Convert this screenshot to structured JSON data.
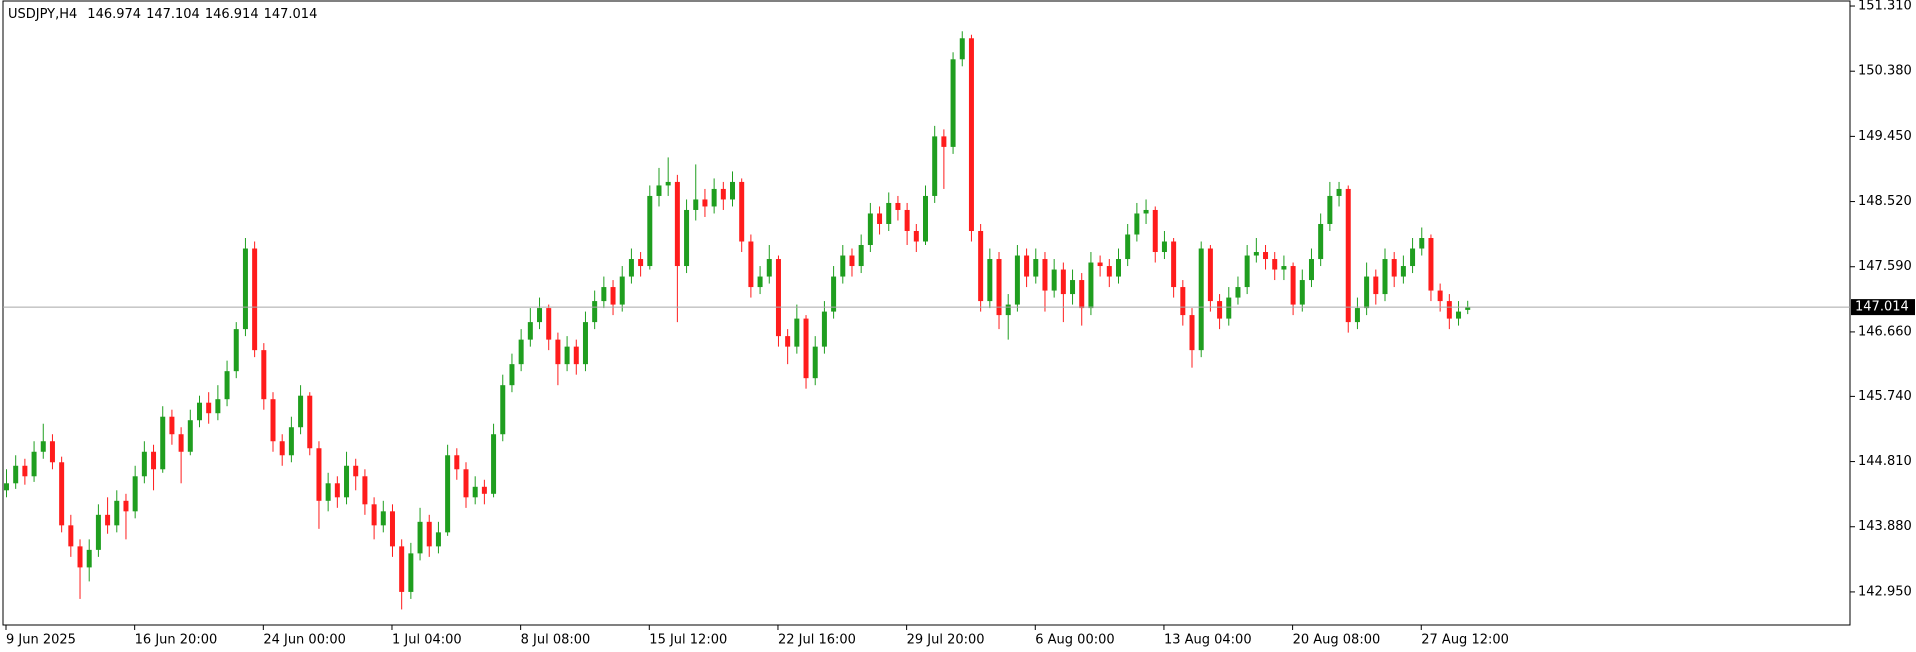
{
  "chart_data": {
    "type": "candlestick",
    "symbol": "USDJPY,H4",
    "ylim": [
      142.478,
      151.396
    ],
    "yticks": [
      {
        "value": 151.31,
        "label": "151.310"
      },
      {
        "value": 150.38,
        "label": "150.380"
      },
      {
        "value": 149.45,
        "label": "149.450"
      },
      {
        "value": 148.52,
        "label": "148.520"
      },
      {
        "value": 147.59,
        "label": "147.590"
      },
      {
        "value": 146.66,
        "label": "146.660"
      },
      {
        "value": 145.74,
        "label": "145.740"
      },
      {
        "value": 144.81,
        "label": "144.810"
      },
      {
        "value": 143.88,
        "label": "143.880"
      },
      {
        "value": 142.95,
        "label": "142.950"
      }
    ],
    "xticks": [
      {
        "value": 0,
        "label": "9 Jun 2025"
      },
      {
        "value": 14,
        "label": "16 Jun 20:00"
      },
      {
        "value": 28,
        "label": "24 Jun 00:00"
      },
      {
        "value": 42,
        "label": "1 Jul 04:00"
      },
      {
        "value": 56,
        "label": "8 Jul 08:00"
      },
      {
        "value": 70,
        "label": "15 Jul 12:00"
      },
      {
        "value": 84,
        "label": "22 Jul 16:00"
      },
      {
        "value": 98,
        "label": "29 Jul 20:00"
      },
      {
        "value": 112,
        "label": "6 Aug 00:00"
      },
      {
        "value": 126,
        "label": "13 Aug 04:00"
      },
      {
        "value": 140,
        "label": "20 Aug 08:00"
      },
      {
        "value": 154,
        "label": "27 Aug 12:00"
      }
    ],
    "up_color": "#1f9e1f",
    "down_color": "#ff1c1c",
    "price_line_color": "#a6a6a6",
    "candles": [
      [
        144.4,
        144.7,
        144.3,
        144.5
      ],
      [
        144.5,
        144.9,
        144.42,
        144.75
      ],
      [
        144.75,
        144.85,
        144.48,
        144.6
      ],
      [
        144.6,
        145.1,
        144.52,
        144.95
      ],
      [
        144.95,
        145.35,
        144.85,
        145.1
      ],
      [
        145.1,
        145.2,
        144.7,
        144.8
      ],
      [
        144.8,
        144.88,
        143.8,
        143.9
      ],
      [
        143.9,
        144.05,
        143.45,
        143.6
      ],
      [
        143.6,
        143.7,
        142.85,
        143.3
      ],
      [
        143.3,
        143.7,
        143.1,
        143.55
      ],
      [
        143.55,
        144.2,
        143.45,
        144.05
      ],
      [
        144.05,
        144.3,
        143.78,
        143.9
      ],
      [
        143.9,
        144.4,
        143.8,
        144.25
      ],
      [
        144.25,
        144.35,
        143.7,
        144.1
      ],
      [
        144.1,
        144.75,
        144.0,
        144.6
      ],
      [
        144.6,
        145.1,
        144.5,
        144.95
      ],
      [
        144.95,
        145.05,
        144.4,
        144.7
      ],
      [
        144.7,
        145.6,
        144.65,
        145.45
      ],
      [
        145.45,
        145.55,
        145.05,
        145.2
      ],
      [
        145.2,
        145.3,
        144.5,
        144.95
      ],
      [
        144.95,
        145.55,
        144.9,
        145.4
      ],
      [
        145.4,
        145.75,
        145.3,
        145.65
      ],
      [
        145.65,
        145.8,
        145.35,
        145.5
      ],
      [
        145.5,
        145.9,
        145.4,
        145.7
      ],
      [
        145.7,
        146.25,
        145.6,
        146.1
      ],
      [
        146.1,
        146.8,
        146.0,
        146.7
      ],
      [
        146.7,
        148.0,
        146.6,
        147.85
      ],
      [
        147.85,
        147.95,
        146.3,
        146.4
      ],
      [
        146.4,
        146.5,
        145.55,
        145.7
      ],
      [
        145.7,
        145.8,
        144.95,
        145.1
      ],
      [
        145.1,
        145.2,
        144.75,
        144.9
      ],
      [
        144.9,
        145.45,
        144.8,
        145.3
      ],
      [
        145.3,
        145.9,
        145.2,
        145.75
      ],
      [
        145.75,
        145.8,
        144.9,
        145.0
      ],
      [
        145.0,
        145.1,
        143.85,
        144.25
      ],
      [
        144.25,
        144.65,
        144.1,
        144.5
      ],
      [
        144.5,
        144.6,
        144.15,
        144.3
      ],
      [
        144.3,
        144.95,
        144.2,
        144.75
      ],
      [
        144.75,
        144.85,
        144.4,
        144.6
      ],
      [
        144.6,
        144.7,
        144.05,
        144.2
      ],
      [
        144.2,
        144.3,
        143.7,
        143.9
      ],
      [
        143.9,
        144.25,
        143.8,
        144.1
      ],
      [
        144.1,
        144.2,
        143.45,
        143.6
      ],
      [
        143.6,
        143.7,
        142.7,
        142.95
      ],
      [
        142.95,
        143.65,
        142.85,
        143.5
      ],
      [
        143.5,
        144.15,
        143.4,
        143.95
      ],
      [
        143.95,
        144.05,
        143.45,
        143.6
      ],
      [
        143.6,
        143.95,
        143.5,
        143.8
      ],
      [
        143.8,
        145.05,
        143.75,
        144.9
      ],
      [
        144.9,
        145.0,
        144.55,
        144.7
      ],
      [
        144.7,
        144.8,
        144.15,
        144.3
      ],
      [
        144.3,
        144.6,
        144.2,
        144.45
      ],
      [
        144.45,
        144.55,
        144.2,
        144.35
      ],
      [
        144.35,
        145.35,
        144.3,
        145.2
      ],
      [
        145.2,
        146.05,
        145.1,
        145.9
      ],
      [
        145.9,
        146.35,
        145.8,
        146.2
      ],
      [
        146.2,
        146.7,
        146.1,
        146.55
      ],
      [
        146.55,
        147.0,
        146.45,
        146.8
      ],
      [
        146.8,
        147.15,
        146.7,
        147.0
      ],
      [
        147.0,
        147.05,
        146.4,
        146.55
      ],
      [
        146.55,
        146.65,
        145.9,
        146.2
      ],
      [
        146.2,
        146.6,
        146.1,
        146.45
      ],
      [
        146.45,
        146.55,
        146.05,
        146.2
      ],
      [
        146.2,
        146.95,
        146.1,
        146.8
      ],
      [
        146.8,
        147.25,
        146.7,
        147.1
      ],
      [
        147.1,
        147.45,
        147.0,
        147.3
      ],
      [
        147.3,
        147.4,
        146.9,
        147.05
      ],
      [
        147.05,
        147.6,
        146.95,
        147.45
      ],
      [
        147.45,
        147.85,
        147.35,
        147.7
      ],
      [
        147.7,
        147.8,
        147.45,
        147.6
      ],
      [
        147.6,
        148.75,
        147.55,
        148.6
      ],
      [
        148.6,
        149.0,
        148.45,
        148.75
      ],
      [
        148.75,
        149.15,
        148.6,
        148.8
      ],
      [
        148.8,
        148.9,
        146.8,
        147.6
      ],
      [
        147.6,
        148.55,
        147.5,
        148.4
      ],
      [
        148.4,
        149.05,
        148.25,
        148.55
      ],
      [
        148.55,
        148.7,
        148.3,
        148.45
      ],
      [
        148.45,
        148.85,
        148.35,
        148.7
      ],
      [
        148.7,
        148.8,
        148.4,
        148.55
      ],
      [
        148.55,
        148.95,
        148.45,
        148.8
      ],
      [
        148.8,
        148.85,
        147.8,
        147.95
      ],
      [
        147.95,
        148.05,
        147.15,
        147.3
      ],
      [
        147.3,
        147.6,
        147.2,
        147.45
      ],
      [
        147.45,
        147.9,
        147.35,
        147.7
      ],
      [
        147.7,
        147.75,
        146.45,
        146.6
      ],
      [
        146.6,
        146.7,
        146.2,
        146.45
      ],
      [
        146.45,
        147.05,
        146.35,
        146.85
      ],
      [
        146.85,
        146.9,
        145.85,
        146.0
      ],
      [
        146.0,
        146.6,
        145.9,
        146.45
      ],
      [
        146.45,
        147.1,
        146.35,
        146.95
      ],
      [
        146.95,
        147.6,
        146.85,
        147.45
      ],
      [
        147.45,
        147.9,
        147.35,
        147.75
      ],
      [
        147.75,
        147.85,
        147.45,
        147.6
      ],
      [
        147.6,
        148.05,
        147.5,
        147.9
      ],
      [
        147.9,
        148.5,
        147.8,
        148.35
      ],
      [
        148.35,
        148.45,
        148.05,
        148.2
      ],
      [
        148.2,
        148.65,
        148.1,
        148.5
      ],
      [
        148.5,
        148.6,
        148.25,
        148.4
      ],
      [
        148.4,
        148.5,
        147.9,
        148.1
      ],
      [
        148.1,
        148.2,
        147.8,
        147.95
      ],
      [
        147.95,
        148.75,
        147.9,
        148.6
      ],
      [
        148.6,
        149.6,
        148.5,
        149.45
      ],
      [
        149.45,
        149.55,
        148.7,
        149.3
      ],
      [
        149.3,
        150.65,
        149.2,
        150.55
      ],
      [
        150.55,
        150.95,
        150.45,
        150.85
      ],
      [
        150.85,
        150.9,
        147.95,
        148.1
      ],
      [
        148.1,
        148.2,
        146.95,
        147.1
      ],
      [
        147.1,
        147.85,
        147.0,
        147.7
      ],
      [
        147.7,
        147.8,
        146.7,
        146.9
      ],
      [
        146.9,
        147.2,
        146.55,
        147.05
      ],
      [
        147.05,
        147.9,
        146.95,
        147.75
      ],
      [
        147.75,
        147.85,
        147.3,
        147.45
      ],
      [
        147.45,
        147.85,
        147.35,
        147.7
      ],
      [
        147.7,
        147.8,
        146.95,
        147.25
      ],
      [
        147.25,
        147.7,
        147.15,
        147.55
      ],
      [
        147.55,
        147.65,
        146.8,
        147.2
      ],
      [
        147.2,
        147.55,
        147.05,
        147.4
      ],
      [
        147.4,
        147.5,
        146.75,
        147.0
      ],
      [
        147.0,
        147.8,
        146.9,
        147.65
      ],
      [
        147.65,
        147.75,
        147.45,
        147.6
      ],
      [
        147.6,
        147.7,
        147.3,
        147.45
      ],
      [
        147.45,
        147.85,
        147.35,
        147.7
      ],
      [
        147.7,
        148.2,
        147.6,
        148.05
      ],
      [
        148.05,
        148.5,
        147.95,
        148.35
      ],
      [
        148.35,
        148.55,
        148.2,
        148.4
      ],
      [
        148.4,
        148.45,
        147.65,
        147.8
      ],
      [
        147.8,
        148.1,
        147.7,
        147.95
      ],
      [
        147.95,
        148.0,
        147.15,
        147.3
      ],
      [
        147.3,
        147.4,
        146.75,
        146.9
      ],
      [
        146.9,
        147.0,
        146.15,
        146.4
      ],
      [
        146.4,
        147.95,
        146.3,
        147.85
      ],
      [
        147.85,
        147.9,
        146.95,
        147.1
      ],
      [
        147.1,
        147.2,
        146.7,
        146.85
      ],
      [
        146.85,
        147.3,
        146.75,
        147.15
      ],
      [
        147.15,
        147.45,
        147.05,
        147.3
      ],
      [
        147.3,
        147.9,
        147.2,
        147.75
      ],
      [
        147.75,
        148.0,
        147.65,
        147.8
      ],
      [
        147.8,
        147.9,
        147.55,
        147.7
      ],
      [
        147.7,
        147.8,
        147.4,
        147.55
      ],
      [
        147.55,
        147.75,
        147.4,
        147.6
      ],
      [
        147.6,
        147.65,
        146.9,
        147.05
      ],
      [
        147.05,
        147.55,
        146.95,
        147.4
      ],
      [
        147.4,
        147.85,
        147.3,
        147.7
      ],
      [
        147.7,
        148.35,
        147.6,
        148.2
      ],
      [
        148.2,
        148.8,
        148.1,
        148.6
      ],
      [
        148.6,
        148.8,
        148.45,
        148.7
      ],
      [
        148.7,
        148.75,
        146.65,
        146.8
      ],
      [
        146.8,
        147.15,
        146.7,
        147.0
      ],
      [
        147.0,
        147.65,
        146.9,
        147.45
      ],
      [
        147.45,
        147.55,
        147.05,
        147.2
      ],
      [
        147.2,
        147.85,
        147.1,
        147.7
      ],
      [
        147.7,
        147.8,
        147.3,
        147.45
      ],
      [
        147.45,
        147.75,
        147.35,
        147.6
      ],
      [
        147.6,
        148.0,
        147.5,
        147.85
      ],
      [
        147.85,
        148.15,
        147.75,
        148.0
      ],
      [
        148.0,
        148.05,
        147.1,
        147.25
      ],
      [
        147.25,
        147.35,
        146.95,
        147.1
      ],
      [
        147.1,
        147.2,
        146.7,
        146.85
      ],
      [
        146.85,
        147.1,
        146.75,
        146.95
      ],
      [
        146.974,
        147.104,
        146.914,
        147.014
      ]
    ]
  }
}
